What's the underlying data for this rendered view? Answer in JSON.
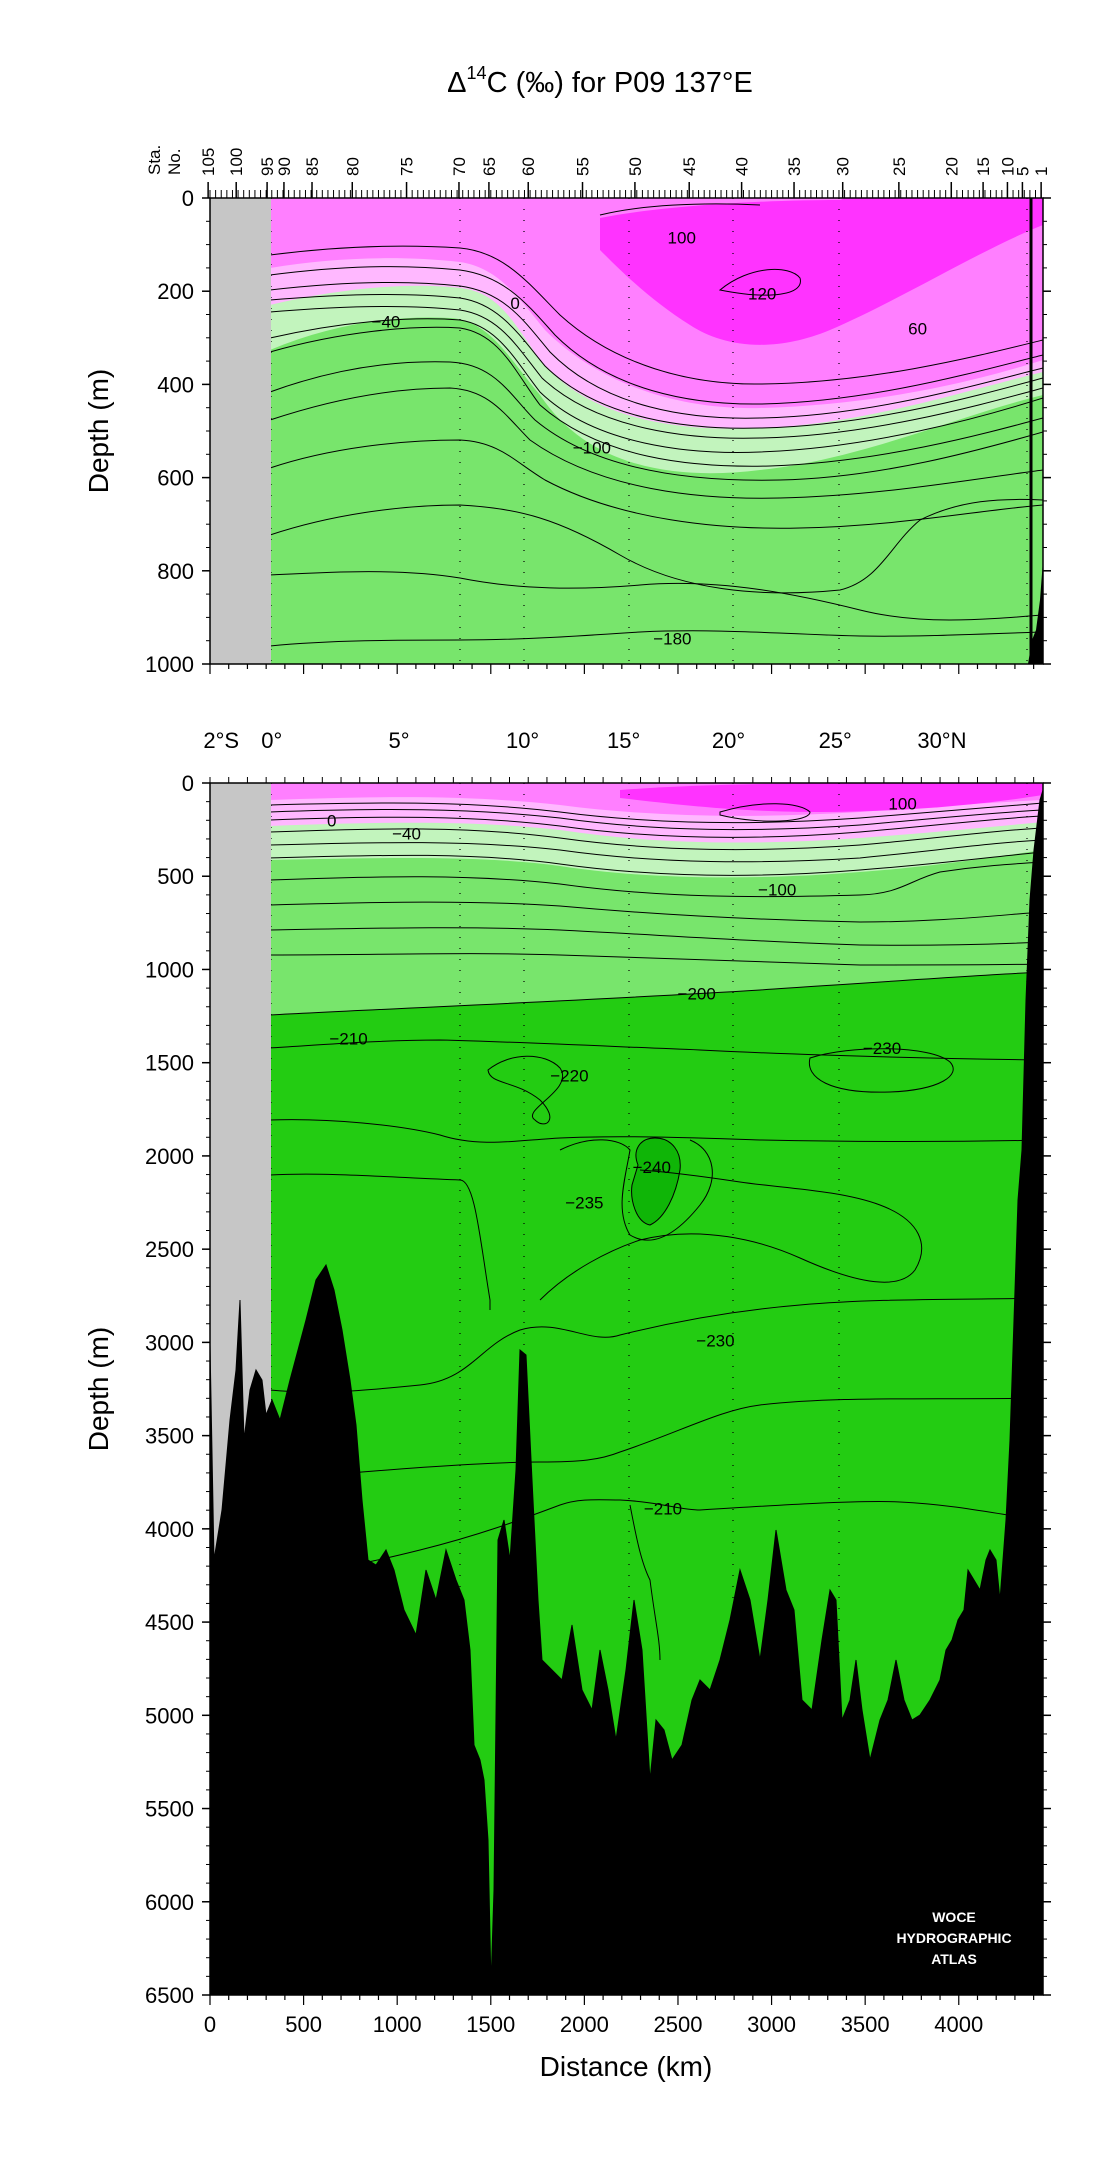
{
  "chart_data": [
    {
      "type": "heatmap",
      "title": "Δ¹⁴C (‰) for P09 137°E",
      "title_parts": {
        "pre": "Δ",
        "sup": "14",
        "post": "C (‰) for P09 137°E"
      },
      "xlabel": "",
      "ylabel": "Depth (m)",
      "xlim": [
        0,
        4450
      ],
      "ylim": [
        1000,
        0
      ],
      "y_ticks": [
        0,
        200,
        400,
        600,
        800,
        1000
      ],
      "station_axis_label": [
        "Sta.",
        "No."
      ],
      "station_ticks": [
        {
          "label": "105",
          "km": -10
        },
        {
          "label": "100",
          "km": 140
        },
        {
          "label": "95",
          "km": 305
        },
        {
          "label": "90",
          "km": 395
        },
        {
          "label": "85",
          "km": 545
        },
        {
          "label": "80",
          "km": 760
        },
        {
          "label": "75",
          "km": 1050
        },
        {
          "label": "70",
          "km": 1330
        },
        {
          "label": "65",
          "km": 1490
        },
        {
          "label": "60",
          "km": 1700
        },
        {
          "label": "55",
          "km": 1990
        },
        {
          "label": "50",
          "km": 2270
        },
        {
          "label": "45",
          "km": 2560
        },
        {
          "label": "40",
          "km": 2840
        },
        {
          "label": "35",
          "km": 3120
        },
        {
          "label": "30",
          "km": 3380
        },
        {
          "label": "25",
          "km": 3680
        },
        {
          "label": "20",
          "km": 3960
        },
        {
          "label": "15",
          "km": 4130
        },
        {
          "label": "10",
          "km": 4260
        },
        {
          "label": "5",
          "km": 4340
        },
        {
          "label": "1",
          "km": 4440
        }
      ],
      "contour_levels": [
        -180,
        -100,
        -40,
        0,
        60,
        100,
        120
      ],
      "contour_labels": [
        {
          "text": "100",
          "x": 2520,
          "y": 85
        },
        {
          "text": "120",
          "x": 2950,
          "y": 205
        },
        {
          "text": "60",
          "x": 3780,
          "y": 280
        },
        {
          "text": "0",
          "x": 1630,
          "y": 225
        },
        {
          "text": "−40",
          "x": 940,
          "y": 265
        },
        {
          "text": "−100",
          "x": 2040,
          "y": 535
        },
        {
          "text": "−180",
          "x": 2470,
          "y": 945
        }
      ],
      "colors": {
        "magenta_dark": "#ff33ff",
        "magenta": "#ff7fff",
        "pink": "#ffb8ff",
        "green_light": "#c2f4bd",
        "green_mid": "#78e56c"
      }
    },
    {
      "type": "heatmap",
      "xlabel": "Distance (km)",
      "ylabel": "Depth (m)",
      "xlim": [
        0,
        4450
      ],
      "ylim": [
        6500,
        0
      ],
      "x_ticks": [
        0,
        500,
        1000,
        1500,
        2000,
        2500,
        3000,
        3500,
        4000
      ],
      "y_ticks": [
        0,
        500,
        1000,
        1500,
        2000,
        2500,
        3000,
        3500,
        4000,
        4500,
        5000,
        5500,
        6000,
        6500
      ],
      "latitude_ticks": [
        {
          "label": "2°S",
          "km": 60
        },
        {
          "label": "0°",
          "km": 330
        },
        {
          "label": "5°",
          "km": 1010
        },
        {
          "label": "10°",
          "km": 1670
        },
        {
          "label": "15°",
          "km": 2210
        },
        {
          "label": "20°",
          "km": 2770
        },
        {
          "label": "25°",
          "km": 3340
        },
        {
          "label": "30°N",
          "km": 3910
        }
      ],
      "contour_levels": [
        -240,
        -235,
        -230,
        -220,
        -210,
        -200,
        -100,
        -40,
        0,
        100
      ],
      "contour_labels": [
        {
          "text": "100",
          "x": 3700,
          "y": 110
        },
        {
          "text": "0",
          "x": 650,
          "y": 200
        },
        {
          "text": "−40",
          "x": 1050,
          "y": 270
        },
        {
          "text": "−100",
          "x": 3030,
          "y": 570
        },
        {
          "text": "−200",
          "x": 2600,
          "y": 1130
        },
        {
          "text": "−210",
          "x": 740,
          "y": 1370
        },
        {
          "text": "−220",
          "x": 1920,
          "y": 1570
        },
        {
          "text": "−230",
          "x": 3590,
          "y": 1420
        },
        {
          "text": "−240",
          "x": 2360,
          "y": 2060
        },
        {
          "text": "−235",
          "x": 2000,
          "y": 2250
        },
        {
          "text": "−230",
          "x": 2700,
          "y": 2990
        },
        {
          "text": "−210",
          "x": 2420,
          "y": 3890
        }
      ],
      "watermark": [
        "WOCE",
        "HYDROGRAPHIC",
        "ATLAS"
      ],
      "colors": {
        "green_deep": "#23cc12",
        "green_deepest": "#0fb507",
        "bathymetry": "#000000",
        "no_data": "#c6c6c6"
      }
    }
  ]
}
